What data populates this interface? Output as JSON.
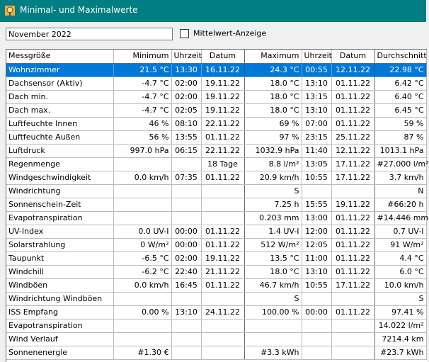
{
  "window": {
    "title": "Minimal- und Maximalwerte",
    "icon": "weather-station-icon"
  },
  "toolbar": {
    "month_value": "November 2022",
    "average_toggle_label": "Mittelwert-Anzeige",
    "average_toggle_checked": false
  },
  "table": {
    "headers": [
      "Messgröße",
      "Minimum",
      "Uhrzeit",
      "Datum",
      "Maximum",
      "Uhrzeit",
      "Datum",
      "Durchschnitt"
    ],
    "selected_row": 0,
    "rows": [
      [
        "Wohnzimmer",
        "21.5 °C",
        "13:30",
        "16.11.22",
        "24.3 °C",
        "00:55",
        "12.11.22",
        "22.98 °C"
      ],
      [
        "Dachsensor (Aktiv)",
        "-4.7 °C",
        "02:00",
        "19.11.22",
        "18.0 °C",
        "13:10",
        "01.11.22",
        "6.42 °C"
      ],
      [
        "Dach min.",
        "-4.7 °C",
        "02:00",
        "19.11.22",
        "18.0 °C",
        "13:15",
        "01.11.22",
        "6.40 °C"
      ],
      [
        "Dach max.",
        "-4.7 °C",
        "02:05",
        "19.11.22",
        "18.0 °C",
        "13:10",
        "01.11.22",
        "6.45 °C"
      ],
      [
        "Luftfeuchte Innen",
        "46 %",
        "08:10",
        "22.11.22",
        "69 %",
        "07:00",
        "01.11.22",
        "59 %"
      ],
      [
        "Luftfeuchte Außen",
        "56 %",
        "13:55",
        "01.11.22",
        "97 %",
        "23:15",
        "25.11.22",
        "87 %"
      ],
      [
        "Luftdruck",
        "997.0 hPa",
        "06:15",
        "22.11.22",
        "1032.9 hPa",
        "11:40",
        "12.11.22",
        "1013.1 hPa"
      ],
      [
        "Regenmenge",
        "",
        "",
        "18 Tage",
        "8.8 l/m²",
        "13:05",
        "17.11.22",
        "#27.000 l/m²"
      ],
      [
        "Windgeschwindigkeit",
        "0.0 km/h",
        "07:35",
        "01.11.22",
        "20.9 km/h",
        "10:55",
        "17.11.22",
        "3.7 km/h"
      ],
      [
        "Windrichtung",
        "",
        "",
        "",
        "S",
        "",
        "",
        "N"
      ],
      [
        "Sonnenschein-Zeit",
        "",
        "",
        "",
        "7.25 h",
        "15:55",
        "19.11.22",
        "#66:20 h"
      ],
      [
        "Evapotranspiration",
        "",
        "",
        "",
        "0.203 mm",
        "13:00",
        "01.11.22",
        "#14.446 mm"
      ],
      [
        "UV-Index",
        "0.0 UV-I",
        "00:00",
        "01.11.22",
        "1.4 UV-I",
        "12:00",
        "01.11.22",
        "0.7 UV-I"
      ],
      [
        "Solarstrahlung",
        "0 W/m²",
        "00:00",
        "01.11.22",
        "512 W/m²",
        "12:05",
        "01.11.22",
        "91 W/m²"
      ],
      [
        "Taupunkt",
        "-6.5 °C",
        "02:00",
        "19.11.22",
        "13.5 °C",
        "11:00",
        "01.11.22",
        "4.4 °C"
      ],
      [
        "Windchill",
        "-6.2 °C",
        "22:40",
        "21.11.22",
        "18.0 °C",
        "13:10",
        "01.11.22",
        "6.0 °C"
      ],
      [
        "Windböen",
        "0.0 km/h",
        "16:45",
        "01.11.22",
        "46.7 km/h",
        "10:55",
        "17.11.22",
        "10.0 km/h"
      ],
      [
        "Windrichtung Windböen",
        "",
        "",
        "",
        "S",
        "",
        "",
        "S"
      ],
      [
        "ISS Empfang",
        "0.00 %",
        "13:10",
        "24.11.22",
        "100.00 %",
        "00:00",
        "01.11.22",
        "97.41 %"
      ],
      [
        "Evapotranspiration",
        "",
        "",
        "",
        "",
        "",
        "",
        "14.022 l/m²"
      ],
      [
        "Wind Verlauf",
        "",
        "",
        "",
        "",
        "",
        "",
        "7214.4 km"
      ],
      [
        "Sonnenenergie",
        "#1.30 €",
        "",
        "",
        "#3.3 kWh",
        "",
        "",
        "#23.7 kWh"
      ]
    ]
  },
  "colors": {
    "titlebar": "#007f82",
    "selection": "#0078d7"
  }
}
